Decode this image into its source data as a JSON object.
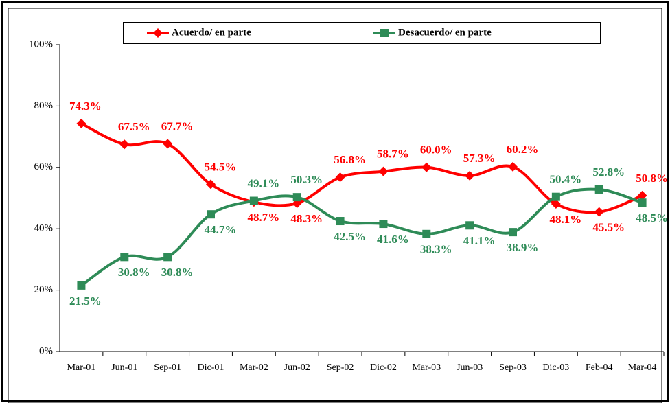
{
  "chart_data": {
    "type": "line",
    "categories": [
      "Mar-01",
      "Jun-01",
      "Sep-01",
      "Dic-01",
      "Mar-02",
      "Jun-02",
      "Sep-02",
      "Dic-02",
      "Mar-03",
      "Jun-03",
      "Sep-03",
      "Dic-03",
      "Feb-04",
      "Mar-04"
    ],
    "series": [
      {
        "name": "Acuerdo/ en parte",
        "color": "#ff0000",
        "values": [
          74.3,
          67.5,
          67.7,
          54.5,
          48.7,
          48.3,
          56.8,
          58.7,
          60.0,
          57.3,
          60.2,
          48.1,
          45.5,
          50.8
        ],
        "value_labels": [
          "74.3%",
          "67.5%",
          "67.7%",
          "54.5%",
          "48.7%",
          "48.3%",
          "56.8%",
          "58.7%",
          "60.0%",
          "57.3%",
          "60.2%",
          "48.1%",
          "45.5%",
          "50.8%"
        ]
      },
      {
        "name": "Desacuerdo/ en parte",
        "color": "#2e8b57",
        "values": [
          21.5,
          30.8,
          30.8,
          44.7,
          49.1,
          50.3,
          42.5,
          41.6,
          38.3,
          41.1,
          38.9,
          50.4,
          52.8,
          48.5
        ],
        "value_labels": [
          "21.5%",
          "30.8%",
          "30.8%",
          "44.7%",
          "49.1%",
          "50.3%",
          "42.5%",
          "41.6%",
          "38.3%",
          "41.1%",
          "38.9%",
          "50.4%",
          "52.8%",
          "48.5%"
        ]
      }
    ],
    "ylim": [
      0,
      100
    ],
    "yticks": [
      {
        "value": 0,
        "label": "0%"
      },
      {
        "value": 20,
        "label": "20%"
      },
      {
        "value": 40,
        "label": "40%"
      },
      {
        "value": 60,
        "label": "60%"
      },
      {
        "value": 80,
        "label": "80%"
      },
      {
        "value": 100,
        "label": "100%"
      }
    ]
  }
}
